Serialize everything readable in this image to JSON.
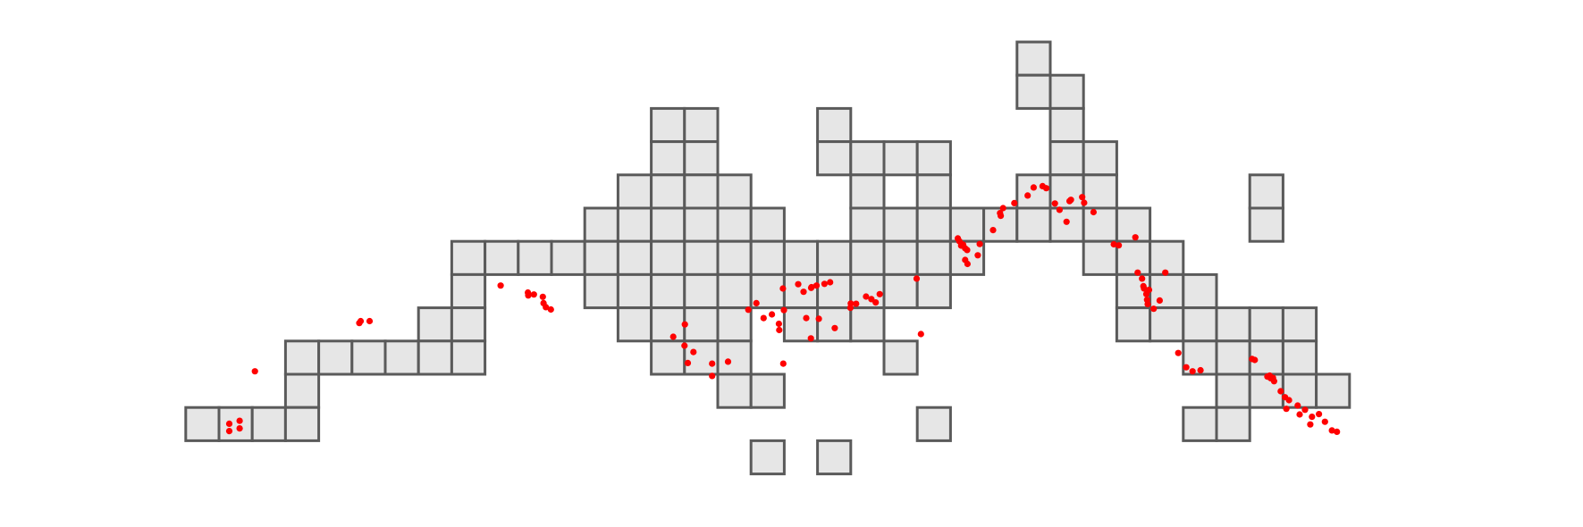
{
  "map": {
    "grid_rows": 13,
    "grid_cols": 35,
    "cell_fill": "#e6e6e6",
    "cell_stroke": "#5a5a5a",
    "point_color": "#ff0000",
    "cells": [
      [
        0,
        24
      ],
      [
        1,
        24
      ],
      [
        1,
        25
      ],
      [
        2,
        13
      ],
      [
        2,
        14
      ],
      [
        2,
        18
      ],
      [
        2,
        25
      ],
      [
        3,
        13
      ],
      [
        3,
        14
      ],
      [
        3,
        18
      ],
      [
        3,
        19
      ],
      [
        3,
        20
      ],
      [
        3,
        21
      ],
      [
        3,
        25
      ],
      [
        3,
        26
      ],
      [
        4,
        12
      ],
      [
        4,
        13
      ],
      [
        4,
        14
      ],
      [
        4,
        15
      ],
      [
        4,
        19
      ],
      [
        4,
        21
      ],
      [
        4,
        24
      ],
      [
        4,
        25
      ],
      [
        4,
        26
      ],
      [
        4,
        31
      ],
      [
        5,
        11
      ],
      [
        5,
        12
      ],
      [
        5,
        13
      ],
      [
        5,
        14
      ],
      [
        5,
        15
      ],
      [
        5,
        16
      ],
      [
        5,
        19
      ],
      [
        5,
        20
      ],
      [
        5,
        21
      ],
      [
        5,
        22
      ],
      [
        5,
        23
      ],
      [
        5,
        24
      ],
      [
        5,
        25
      ],
      [
        5,
        26
      ],
      [
        5,
        27
      ],
      [
        5,
        31
      ],
      [
        6,
        7
      ],
      [
        6,
        8
      ],
      [
        6,
        9
      ],
      [
        6,
        10
      ],
      [
        6,
        11
      ],
      [
        6,
        12
      ],
      [
        6,
        13
      ],
      [
        6,
        14
      ],
      [
        6,
        15
      ],
      [
        6,
        16
      ],
      [
        6,
        17
      ],
      [
        6,
        18
      ],
      [
        6,
        19
      ],
      [
        6,
        20
      ],
      [
        6,
        21
      ],
      [
        6,
        22
      ],
      [
        6,
        26
      ],
      [
        6,
        27
      ],
      [
        6,
        28
      ],
      [
        7,
        7
      ],
      [
        7,
        11
      ],
      [
        7,
        12
      ],
      [
        7,
        13
      ],
      [
        7,
        14
      ],
      [
        7,
        15
      ],
      [
        7,
        16
      ],
      [
        7,
        17
      ],
      [
        7,
        18
      ],
      [
        7,
        19
      ],
      [
        7,
        20
      ],
      [
        7,
        21
      ],
      [
        7,
        27
      ],
      [
        7,
        28
      ],
      [
        7,
        29
      ],
      [
        8,
        6
      ],
      [
        8,
        7
      ],
      [
        8,
        12
      ],
      [
        8,
        13
      ],
      [
        8,
        14
      ],
      [
        8,
        15
      ],
      [
        8,
        17
      ],
      [
        8,
        18
      ],
      [
        8,
        19
      ],
      [
        8,
        27
      ],
      [
        8,
        28
      ],
      [
        8,
        29
      ],
      [
        8,
        30
      ],
      [
        8,
        31
      ],
      [
        8,
        32
      ],
      [
        9,
        2
      ],
      [
        9,
        3
      ],
      [
        9,
        4
      ],
      [
        9,
        5
      ],
      [
        9,
        6
      ],
      [
        9,
        7
      ],
      [
        9,
        13
      ],
      [
        9,
        14
      ],
      [
        9,
        15
      ],
      [
        9,
        20
      ],
      [
        9,
        29
      ],
      [
        9,
        30
      ],
      [
        9,
        31
      ],
      [
        9,
        32
      ],
      [
        10,
        2
      ],
      [
        10,
        15
      ],
      [
        10,
        16
      ],
      [
        10,
        30
      ],
      [
        10,
        31
      ],
      [
        10,
        32
      ],
      [
        10,
        33
      ],
      [
        11,
        -1
      ],
      [
        11,
        0
      ],
      [
        11,
        1
      ],
      [
        11,
        2
      ],
      [
        11,
        21
      ],
      [
        11,
        29
      ],
      [
        11,
        30
      ],
      [
        12,
        16
      ],
      [
        12,
        18
      ]
    ],
    "points": [
      [
        0.31,
        11.49
      ],
      [
        0.31,
        11.71
      ],
      [
        0.62,
        11.4
      ],
      [
        0.62,
        11.63
      ],
      [
        1.08,
        9.91
      ],
      [
        4.22,
        8.46
      ],
      [
        4.26,
        8.4
      ],
      [
        4.53,
        8.4
      ],
      [
        8.47,
        7.33
      ],
      [
        9.29,
        7.54
      ],
      [
        9.3,
        7.63
      ],
      [
        9.47,
        7.6
      ],
      [
        9.74,
        7.67
      ],
      [
        9.76,
        7.86
      ],
      [
        9.83,
        7.98
      ],
      [
        9.98,
        8.05
      ],
      [
        13.66,
        8.87
      ],
      [
        14.01,
        8.5
      ],
      [
        14.0,
        9.14
      ],
      [
        14.1,
        9.66
      ],
      [
        14.27,
        9.33
      ],
      [
        14.83,
        9.68
      ],
      [
        14.83,
        10.05
      ],
      [
        15.31,
        9.62
      ],
      [
        15.92,
        8.06
      ],
      [
        16.16,
        7.86
      ],
      [
        16.38,
        8.31
      ],
      [
        16.63,
        8.2
      ],
      [
        16.84,
        8.48
      ],
      [
        16.85,
        8.67
      ],
      [
        16.96,
        7.42
      ],
      [
        16.97,
        9.68
      ],
      [
        16.99,
        8.07
      ],
      [
        17.42,
        7.29
      ],
      [
        17.58,
        7.52
      ],
      [
        17.66,
        8.31
      ],
      [
        17.8,
        8.92
      ],
      [
        17.81,
        7.4
      ],
      [
        17.82,
        7.38
      ],
      [
        17.97,
        7.33
      ],
      [
        18.04,
        8.33
      ],
      [
        18.21,
        7.28
      ],
      [
        18.38,
        7.23
      ],
      [
        18.52,
        8.61
      ],
      [
        18.99,
        8.0
      ],
      [
        19.0,
        7.87
      ],
      [
        19.16,
        7.88
      ],
      [
        19.46,
        7.66
      ],
      [
        19.62,
        7.74
      ],
      [
        19.75,
        7.84
      ],
      [
        19.87,
        7.59
      ],
      [
        20.98,
        7.12
      ],
      [
        21.11,
        8.79
      ],
      [
        22.22,
        5.91
      ],
      [
        22.27,
        6.0
      ],
      [
        22.32,
        6.13
      ],
      [
        22.33,
        6.09
      ],
      [
        22.38,
        6.1
      ],
      [
        22.44,
        6.21
      ],
      [
        22.44,
        6.56
      ],
      [
        22.51,
        6.68
      ],
      [
        22.5,
        6.26
      ],
      [
        22.88,
        6.08
      ],
      [
        22.82,
        6.42
      ],
      [
        23.28,
        5.66
      ],
      [
        23.49,
        5.15
      ],
      [
        23.51,
        5.23
      ],
      [
        23.58,
        5.0
      ],
      [
        23.92,
        4.85
      ],
      [
        24.32,
        4.62
      ],
      [
        24.5,
        4.38
      ],
      [
        24.77,
        4.34
      ],
      [
        24.88,
        4.4
      ],
      [
        25.14,
        4.86
      ],
      [
        25.28,
        5.05
      ],
      [
        25.49,
        5.41
      ],
      [
        25.58,
        4.79
      ],
      [
        25.62,
        4.75
      ],
      [
        25.96,
        4.67
      ],
      [
        26.02,
        4.84
      ],
      [
        26.3,
        5.12
      ],
      [
        26.91,
        6.09
      ],
      [
        27.06,
        6.12
      ],
      [
        27.56,
        5.88
      ],
      [
        27.63,
        6.94
      ],
      [
        27.76,
        7.12
      ],
      [
        27.8,
        7.35
      ],
      [
        27.82,
        7.42
      ],
      [
        27.89,
        7.59
      ],
      [
        27.91,
        7.76
      ],
      [
        27.93,
        7.89
      ],
      [
        27.97,
        7.46
      ],
      [
        28.11,
        8.03
      ],
      [
        28.29,
        7.78
      ],
      [
        28.46,
        6.94
      ],
      [
        28.85,
        9.36
      ],
      [
        29.09,
        9.79
      ],
      [
        29.28,
        9.91
      ],
      [
        29.52,
        9.88
      ],
      [
        31.07,
        9.54
      ],
      [
        31.15,
        9.57
      ],
      [
        31.53,
        10.07
      ],
      [
        31.6,
        10.04
      ],
      [
        31.63,
        10.12
      ],
      [
        31.7,
        10.11
      ],
      [
        31.73,
        10.21
      ],
      [
        31.93,
        10.51
      ],
      [
        32.06,
        10.69
      ],
      [
        32.1,
        11.04
      ],
      [
        32.18,
        10.78
      ],
      [
        32.44,
        10.94
      ],
      [
        32.5,
        11.21
      ],
      [
        32.66,
        11.07
      ],
      [
        32.82,
        11.51
      ],
      [
        32.87,
        11.28
      ],
      [
        33.08,
        11.2
      ],
      [
        33.26,
        11.43
      ],
      [
        33.47,
        11.69
      ],
      [
        33.62,
        11.73
      ]
    ]
  }
}
